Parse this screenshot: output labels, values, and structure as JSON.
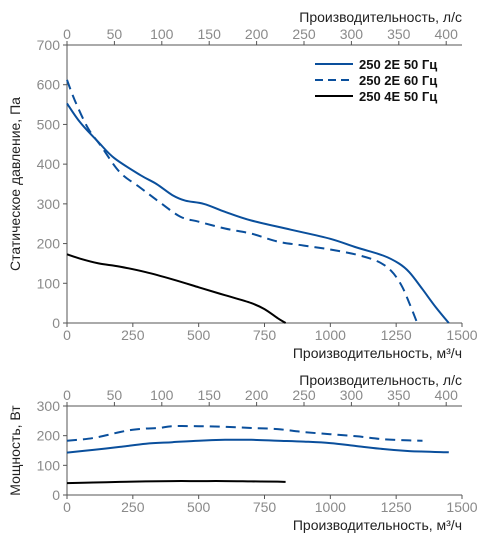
{
  "chart_data": [
    {
      "type": "line",
      "top_axis_label": "Производительность, л/с",
      "bottom_axis_label": "Производительность, м³/ч",
      "ylabel": "Статическое давление, Па",
      "xlim": [
        0,
        1500
      ],
      "ylim": [
        0,
        700
      ],
      "x_ticks": [
        "0",
        "250",
        "500",
        "750",
        "1000",
        "1250",
        "1500"
      ],
      "top_ticks": [
        "0",
        "50",
        "100",
        "150",
        "200",
        "250",
        "300",
        "350",
        "400"
      ],
      "y_ticks": [
        "0",
        "100",
        "200",
        "300",
        "400",
        "500",
        "600",
        "700"
      ],
      "grid": false,
      "legend_position": "top-right",
      "series": [
        {
          "name": "250 2E 50 Гц",
          "color": "#0a4f9c",
          "dash": "solid",
          "points": [
            [
              0,
              553
            ],
            [
              50,
              505
            ],
            [
              120,
              455
            ],
            [
              180,
              415
            ],
            [
              280,
              372
            ],
            [
              340,
              350
            ],
            [
              400,
              322
            ],
            [
              450,
              308
            ],
            [
              520,
              300
            ],
            [
              600,
              280
            ],
            [
              700,
              258
            ],
            [
              850,
              235
            ],
            [
              1000,
              212
            ],
            [
              1100,
              190
            ],
            [
              1200,
              170
            ],
            [
              1260,
              150
            ],
            [
              1300,
              128
            ],
            [
              1350,
              85
            ],
            [
              1400,
              40
            ],
            [
              1450,
              0
            ]
          ]
        },
        {
          "name": "250 2E 60 Гц",
          "color": "#0a4f9c",
          "dash": "dashed",
          "points": [
            [
              0,
              612
            ],
            [
              30,
              560
            ],
            [
              80,
              490
            ],
            [
              130,
              445
            ],
            [
              200,
              380
            ],
            [
              280,
              340
            ],
            [
              350,
              305
            ],
            [
              430,
              268
            ],
            [
              500,
              255
            ],
            [
              600,
              238
            ],
            [
              700,
              225
            ],
            [
              800,
              205
            ],
            [
              900,
              195
            ],
            [
              1000,
              185
            ],
            [
              1100,
              172
            ],
            [
              1180,
              155
            ],
            [
              1230,
              132
            ],
            [
              1270,
              95
            ],
            [
              1300,
              50
            ],
            [
              1330,
              0
            ]
          ]
        },
        {
          "name": "250 4E 50 Гц",
          "color": "#000000",
          "dash": "solid",
          "points": [
            [
              0,
              173
            ],
            [
              50,
              162
            ],
            [
              120,
              150
            ],
            [
              200,
              142
            ],
            [
              300,
              128
            ],
            [
              400,
              110
            ],
            [
              500,
              90
            ],
            [
              600,
              70
            ],
            [
              700,
              50
            ],
            [
              750,
              35
            ],
            [
              800,
              12
            ],
            [
              830,
              0
            ]
          ]
        }
      ]
    },
    {
      "type": "line",
      "top_axis_label": "Производительность, л/с",
      "bottom_axis_label": "Производительность, м³/ч",
      "ylabel": "Мощность, Вт",
      "xlim": [
        0,
        1500
      ],
      "ylim": [
        0,
        300
      ],
      "x_ticks": [
        "0",
        "250",
        "500",
        "750",
        "1000",
        "1250",
        "1500"
      ],
      "top_ticks": [
        "0",
        "50",
        "100",
        "150",
        "200",
        "250",
        "300",
        "350",
        "400"
      ],
      "y_ticks": [
        "0",
        "100",
        "200",
        "300"
      ],
      "grid": false,
      "series": [
        {
          "name": "250 2E 50 Гц",
          "color": "#0a4f9c",
          "dash": "solid",
          "points": [
            [
              0,
              143
            ],
            [
              100,
              152
            ],
            [
              200,
              162
            ],
            [
              300,
              173
            ],
            [
              400,
              178
            ],
            [
              500,
              183
            ],
            [
              600,
              186
            ],
            [
              700,
              186
            ],
            [
              800,
              183
            ],
            [
              900,
              180
            ],
            [
              1000,
              175
            ],
            [
              1100,
              165
            ],
            [
              1200,
              155
            ],
            [
              1300,
              148
            ],
            [
              1450,
              144
            ]
          ]
        },
        {
          "name": "250 2E 60 Гц",
          "color": "#0a4f9c",
          "dash": "dashed",
          "points": [
            [
              0,
              183
            ],
            [
              100,
              192
            ],
            [
              200,
              212
            ],
            [
              250,
              220
            ],
            [
              300,
              224
            ],
            [
              350,
              226
            ],
            [
              400,
              232
            ],
            [
              500,
              232
            ],
            [
              600,
              230
            ],
            [
              700,
              226
            ],
            [
              800,
              222
            ],
            [
              900,
              212
            ],
            [
              1000,
              205
            ],
            [
              1100,
              198
            ],
            [
              1200,
              188
            ],
            [
              1300,
              184
            ],
            [
              1350,
              183
            ]
          ]
        },
        {
          "name": "250 4E 50 Гц",
          "color": "#000000",
          "dash": "solid",
          "points": [
            [
              0,
              40
            ],
            [
              100,
              42
            ],
            [
              200,
              44
            ],
            [
              300,
              46
            ],
            [
              400,
              47
            ],
            [
              500,
              47
            ],
            [
              600,
              47
            ],
            [
              700,
              46
            ],
            [
              800,
              45
            ],
            [
              830,
              44
            ]
          ]
        }
      ]
    }
  ]
}
